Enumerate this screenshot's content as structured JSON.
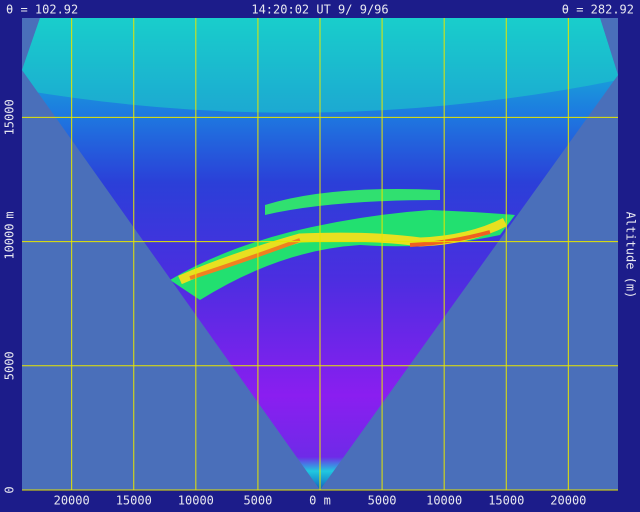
{
  "chart_data": {
    "type": "rhi",
    "title_left": "θ = 102.92",
    "title_center": "14:20:02 UT  9/ 9/96",
    "title_right": "θ = 282.92",
    "y_label": "Altitude (m)",
    "y_unit": "m",
    "xlim": [
      -24000,
      24000
    ],
    "xticks": [
      {
        "value": -20000,
        "label": "20000"
      },
      {
        "value": -15000,
        "label": "15000"
      },
      {
        "value": -10000,
        "label": "10000"
      },
      {
        "value": -5000,
        "label": "5000"
      },
      {
        "value": 0,
        "label": "0 m"
      },
      5000,
      10000,
      15000,
      20000
    ],
    "ylim": [
      0,
      19000
    ],
    "yticks": [
      0,
      5000,
      10000,
      15000
    ],
    "grid": true,
    "grid_color": "#e6e600"
  }
}
